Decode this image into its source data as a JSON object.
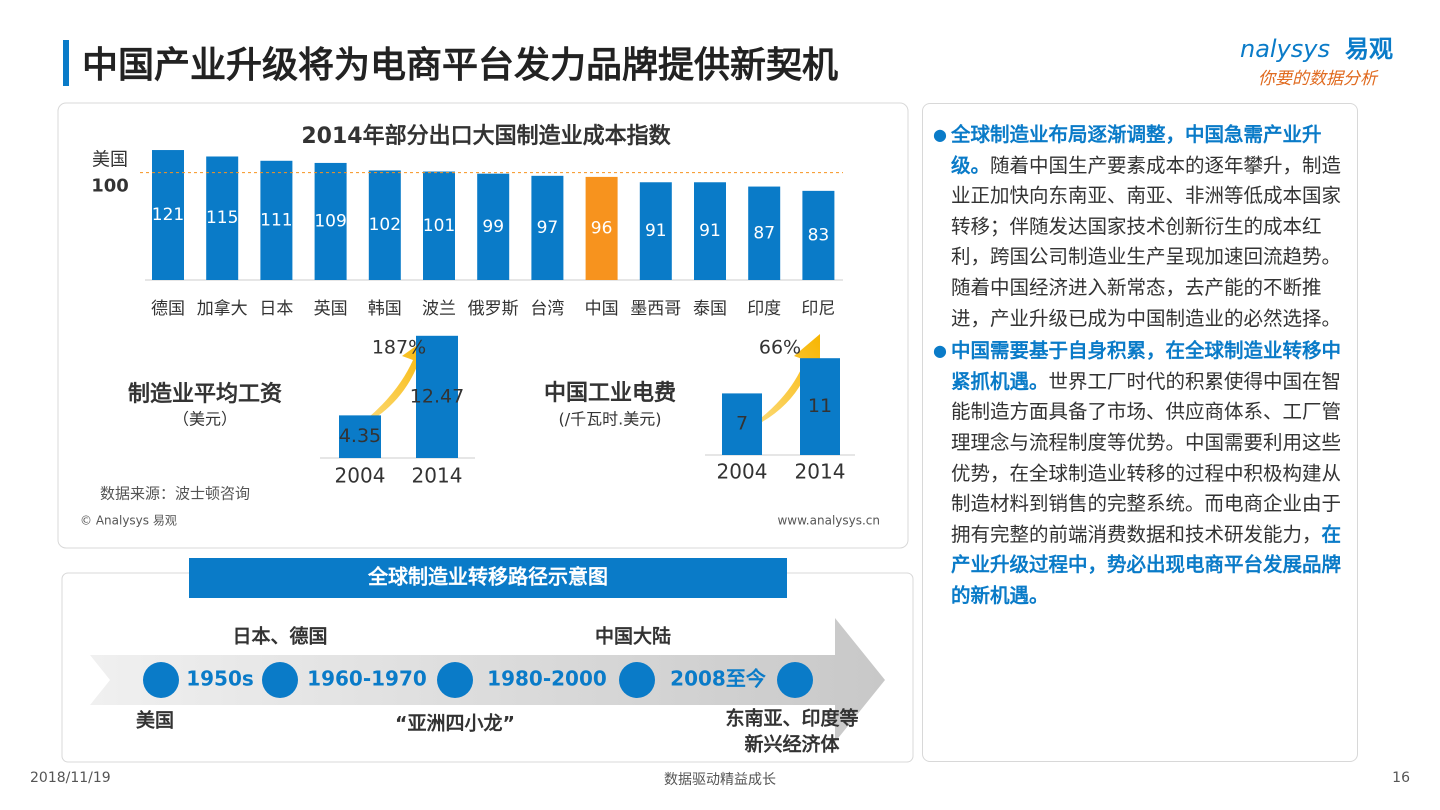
{
  "header": {
    "title": "中国产业升级将为电商平台发力品牌提供新契机",
    "logo": {
      "brand": "nalysys",
      "name": "易观",
      "slogan": "你要的数据分析"
    }
  },
  "chart_data": [
    {
      "type": "bar",
      "title": "2014年部分出口大国制造业成本指数",
      "categories": [
        "德国",
        "加拿大",
        "日本",
        "英国",
        "韩国",
        "波兰",
        "俄罗斯",
        "台湾",
        "中国",
        "墨西哥",
        "泰国",
        "印度",
        "印尼"
      ],
      "values": [
        121,
        115,
        111,
        109,
        102,
        101,
        99,
        97,
        96,
        91,
        91,
        87,
        83
      ],
      "colors": [
        "#0a7bc8",
        "#0a7bc8",
        "#0a7bc8",
        "#0a7bc8",
        "#0a7bc8",
        "#0a7bc8",
        "#0a7bc8",
        "#0a7bc8",
        "#f7931e",
        "#0a7bc8",
        "#0a7bc8",
        "#0a7bc8",
        "#0a7bc8"
      ],
      "reference": {
        "label": "美国",
        "value": 100
      }
    },
    {
      "type": "bar",
      "title": "制造业平均工资",
      "subtitle": "（美元）",
      "categories": [
        "2004",
        "2014"
      ],
      "values": [
        4.35,
        12.47
      ],
      "color": "#0a7bc8",
      "annotation": "187%"
    },
    {
      "type": "bar",
      "title": "中国工业电费",
      "subtitle": "(/千瓦时.美元)",
      "categories": [
        "2004",
        "2014"
      ],
      "values": [
        7,
        11
      ],
      "color": "#0a7bc8",
      "annotation": "66%"
    }
  ],
  "source": "数据来源：波士顿咨询",
  "copyright": "© Analysys 易观",
  "url": "www.analysys.cn",
  "timeline": {
    "title": "全球制造业转移路径示意图",
    "periods": [
      "1950s",
      "1960-1970",
      "1980-2000",
      "2008至今"
    ],
    "top": [
      "日本、德国",
      "中国大陆"
    ],
    "bottom": [
      "美国",
      "“亚洲四小龙”",
      "东南亚、印度等",
      "新兴经济体"
    ]
  },
  "panel": {
    "bullets": [
      {
        "lead": "全球制造业布局逐渐调整，中国急需产业升级。",
        "body": "随着中国生产要素成本的逐年攀升，制造业正加快向东南亚、南亚、非洲等低成本国家转移；伴随发达国家技术创新衍生的成本红利，跨国公司制造业生产呈现加速回流趋势。随着中国经济进入新常态，去产能的不断推进，产业升级已成为中国制造业的必然选择。"
      },
      {
        "lead": "中国需要基于自身积累，在全球制造业转移中紧抓机遇。",
        "body": "世界工厂时代的积累使得中国在智能制造方面具备了市场、供应商体系、工厂管理理念与流程制度等优势。中国需要利用这些优势，在全球制造业转移的过程中积极构建从制造材料到销售的完整系统。而电商企业由于拥有完整的前端消费数据和技术研发能力，",
        "tail": "在产业升级过程中，势必出现电商平台发展品牌的新机遇。"
      }
    ]
  },
  "footer": {
    "date": "2018/11/19",
    "slogan": "数据驱动精益成长",
    "page": "16"
  }
}
